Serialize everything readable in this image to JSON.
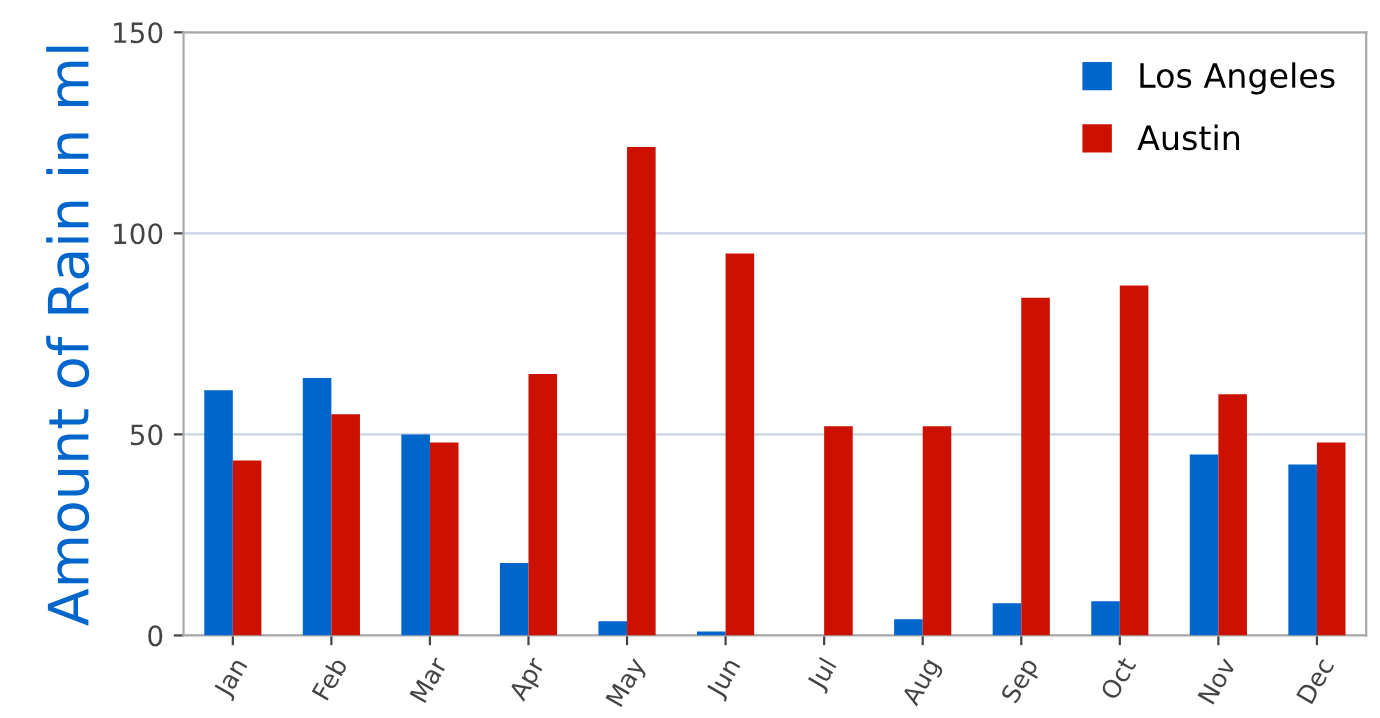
{
  "chart_data": {
    "type": "bar",
    "ylabel": "Amount of Rain in ml",
    "categories": [
      "Jan",
      "Feb",
      "Mar",
      "Apr",
      "May",
      "Jun",
      "Jul",
      "Aug",
      "Sep",
      "Oct",
      "Nov",
      "Dec"
    ],
    "series": [
      {
        "name": "Los Angeles",
        "color": "#0066cc",
        "values": [
          61,
          64,
          50,
          18,
          3.5,
          1,
          0,
          4,
          8,
          8.5,
          45,
          42.5
        ]
      },
      {
        "name": "Austin",
        "color": "#cc1100",
        "values": [
          43.5,
          55,
          48,
          65,
          121.5,
          95,
          52,
          52,
          84,
          87,
          60,
          48
        ]
      }
    ],
    "ylim": [
      0,
      150
    ],
    "yticks": [
      0,
      50,
      100,
      150
    ],
    "grid": "y",
    "legend": "top right"
  }
}
